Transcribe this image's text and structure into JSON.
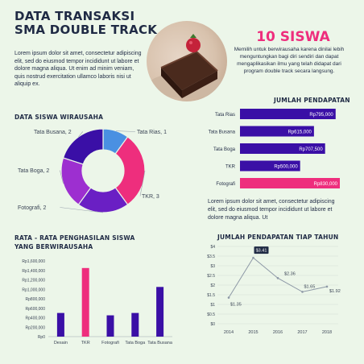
{
  "header": {
    "title_line1": "DATA TRANSAKSI",
    "title_line2": "SMA DOUBLE TRACK",
    "intro": "Lorem ipsum dolor sit amet, consectetur adipiscing elit, sed do eiusmod tempor incididunt ut labore et dolore magna aliqua. Ut enim ad minim veniam, quis nostrud exercitation ullamco laboris nisi ut aliquip ex."
  },
  "highlight": {
    "count": "10 SISWA",
    "description": "Memilih untuk berwirausaha karena dinilai lebih menguntungkan bagi diri sendiri dan dapat mengaplikasikan ilmu yang telah didapat dari program double track secara  langsung."
  },
  "lorem2": "Lorem ipsum dolor sit amet, consectetur adipiscing elit, sed do eiusmod tempor incididunt ut labore et dolore magna aliqua. Ut",
  "colors": {
    "pink": "#ee2e7d",
    "purple": "#6a1fc4",
    "violet": "#9d2fd0",
    "indigo": "#3a0fa6",
    "blue": "#4a90e2",
    "navy": "#2e1a9a",
    "dark_text": "#1f2a44",
    "line": "#8d98a6"
  },
  "chart_data": [
    {
      "type": "pie",
      "title": "DATA SISWA WIRAUSAHA",
      "categories": [
        "Tata Rias",
        "TKR",
        "Fotografi",
        "Tata Boga",
        "Tata Busana"
      ],
      "values": [
        1,
        3,
        2,
        2,
        2
      ],
      "labels": [
        "Tata Rias, 1",
        "TKR, 3",
        "Fotografi, 2",
        "Tata Boga, 2",
        "Tata Busana, 2"
      ],
      "colors": [
        "#4a90e2",
        "#ee2e7d",
        "#6a1fc4",
        "#9d2fd0",
        "#3a0fa6"
      ],
      "style": "donut"
    },
    {
      "type": "bar",
      "orientation": "horizontal",
      "title": "JUMLAH PENDAPATAN",
      "categories": [
        "Tata Rias",
        "Tata Busana",
        "Tata Boga",
        "TKR",
        "Fotografi"
      ],
      "values": [
        795000,
        615000,
        707500,
        500000,
        830000
      ],
      "value_labels": [
        "Rp795,000",
        "Rp615,000",
        "Rp707,500",
        "Rp500,000",
        "Rp830,000"
      ],
      "colors": [
        "#3a0fa6",
        "#3a0fa6",
        "#3a0fa6",
        "#3a0fa6",
        "#ee2e7d"
      ]
    },
    {
      "type": "bar",
      "title_line1": "RATA - RATA PENGHASILAN SISWA",
      "title_line2": "YANG BERWIRAUSAHA",
      "categories": [
        "Desain",
        "TKR",
        "Fotografi",
        "Tata Boga",
        "Tata Busana"
      ],
      "values": [
        500000,
        1450000,
        450000,
        500000,
        1050000
      ],
      "colors": [
        "#3a0fa6",
        "#ee2e7d",
        "#3a0fa6",
        "#3a0fa6",
        "#3a0fa6"
      ],
      "ylim": [
        0,
        1600000
      ],
      "yticks": [
        0,
        200000,
        400000,
        600000,
        800000,
        1000000,
        1200000,
        1400000,
        1600000
      ],
      "ytick_labels": [
        "Rp0",
        "Rp200,000",
        "Rp400,000",
        "Rp600,000",
        "Rp800,000",
        "Rp1,000,000",
        "Rp1,200,000",
        "Rp1,400,000",
        "Rp1,600,000"
      ]
    },
    {
      "type": "line",
      "title": "JUMLAH PENDAPATAN TIAP TAHUN",
      "x": [
        "2014",
        "2015",
        "2016",
        "2017",
        "2018"
      ],
      "values": [
        1.35,
        3.41,
        2.36,
        1.65,
        1.92
      ],
      "value_labels": [
        "$1.35",
        "$3.41",
        "$2.36",
        "$1.65",
        "$1.92"
      ],
      "ylim": [
        0,
        4
      ],
      "yticks": [
        0,
        0.5,
        1,
        1.5,
        2,
        2.5,
        3,
        3.5,
        4
      ],
      "ytick_labels": [
        "$0",
        "$0.5",
        "$1",
        "$1.5",
        "$2",
        "$2.5",
        "$3",
        "$3.5",
        "$4"
      ],
      "grid": true
    }
  ]
}
